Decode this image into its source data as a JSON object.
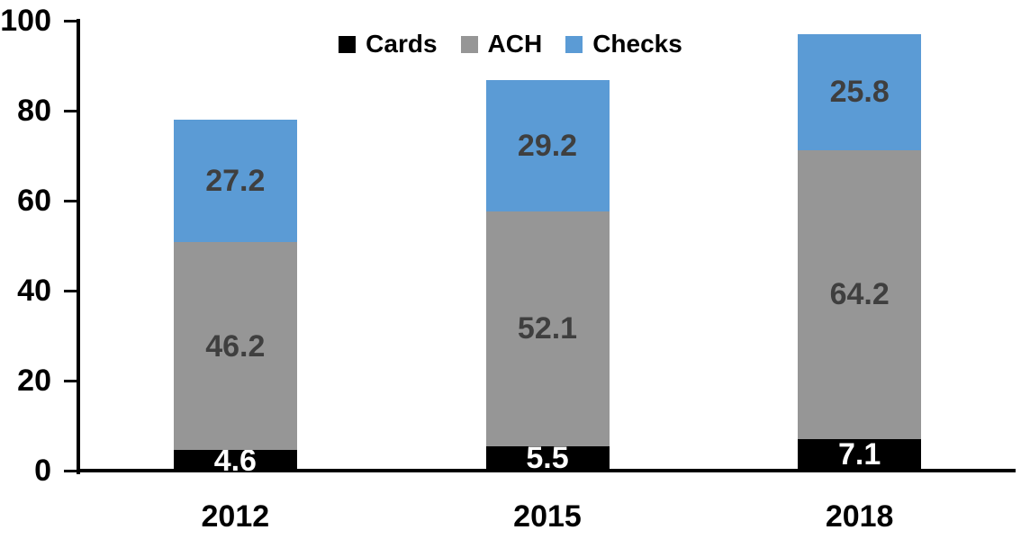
{
  "chart_data": {
    "type": "bar",
    "stacked": true,
    "title": "",
    "xlabel": "",
    "ylabel": "",
    "categories": [
      "2012",
      "2015",
      "2018"
    ],
    "series": [
      {
        "name": "Cards",
        "color": "#000000",
        "label_color": "#FFFFFF",
        "values": [
          4.6,
          5.5,
          7.1
        ]
      },
      {
        "name": "ACH",
        "color": "#969696",
        "label_color": "#3F3F3F",
        "values": [
          46.2,
          52.1,
          64.2
        ]
      },
      {
        "name": "Checks",
        "color": "#5B9BD5",
        "label_color": "#3F3F3F",
        "values": [
          27.2,
          29.2,
          25.8
        ]
      }
    ],
    "yticks": [
      0,
      20,
      40,
      60,
      80,
      100
    ],
    "ylim": [
      0,
      100
    ],
    "grid": false,
    "legend_position": "top-center",
    "axis_color": "#000000",
    "background_color": "#FFFFFF"
  }
}
